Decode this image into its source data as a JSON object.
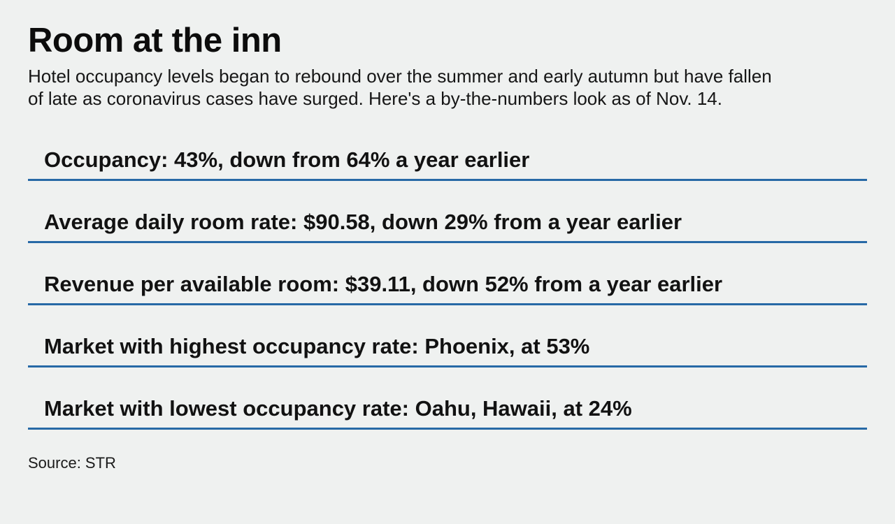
{
  "title": "Room at the inn",
  "subtitle": {
    "line1": "Hotel occupancy levels began to rebound over the summer and early autumn but have fallen",
    "line2": "of late as coronavirus cases have surged. Here's a by-the-numbers look as of Nov. 14."
  },
  "stats": {
    "items": [
      "Occupancy: 43%, down from 64% a year earlier",
      "Average daily room rate: $90.58, down 29% from a year earlier",
      "Revenue per available room: $39.11, down 52% from a year earlier",
      "Market with highest occupancy rate: Phoenix, at 53%",
      "Market with lowest occupancy rate: Oahu, Hawaii, at 24%"
    ]
  },
  "source": "Source: STR",
  "colors": {
    "accent": "#2769a6",
    "background": "#eff1f0",
    "text": "#111111"
  },
  "chart_data": {
    "type": "table",
    "title": "Room at the inn",
    "subtitle": "Hotel occupancy levels began to rebound over the summer and early autumn but have fallen of late as coronavirus cases have surged. Here's a by-the-numbers look as of Nov. 14.",
    "as_of": "Nov. 14",
    "rows": [
      {
        "metric": "Occupancy",
        "value": "43%",
        "comparison": "down from 64% a year earlier"
      },
      {
        "metric": "Average daily room rate",
        "value": "$90.58",
        "comparison": "down 29% from a year earlier"
      },
      {
        "metric": "Revenue per available room",
        "value": "$39.11",
        "comparison": "down 52% from a year earlier"
      },
      {
        "metric": "Market with highest occupancy rate",
        "value": "Phoenix, at 53%"
      },
      {
        "metric": "Market with lowest occupancy rate",
        "value": "Oahu, Hawaii, at 24%"
      }
    ],
    "source": "STR"
  }
}
